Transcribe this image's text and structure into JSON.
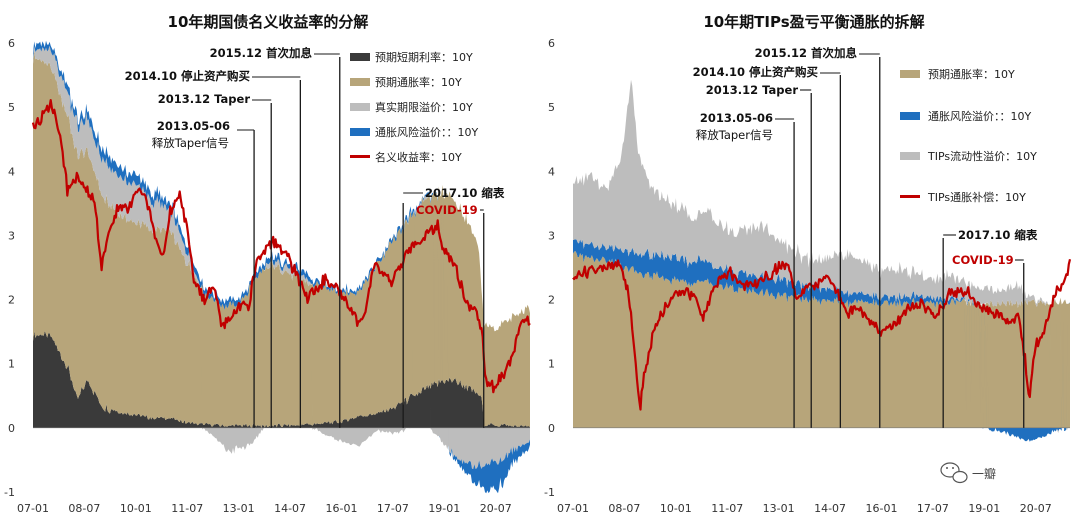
{
  "watermark": {
    "text": "一瓣"
  },
  "colors": {
    "short_rate": "#3a3a3a",
    "inflation_expectation": "#b7a57a",
    "term_premium": "#bdbdbd",
    "inflation_risk_premium": "#1f6fbf",
    "nominal_yield": "#c00000",
    "tips_liquidity": "#bdbdbd",
    "breakeven": "#c00000"
  },
  "chart_data": [
    {
      "type": "area",
      "title": "10年期国债名义收益率的分解",
      "xlabel": "",
      "ylabel": "",
      "ylim": [
        -1,
        6
      ],
      "yticks": [
        -1,
        0,
        1,
        2,
        3,
        4,
        5,
        6
      ],
      "x_range": [
        2007.0,
        2021.5
      ],
      "xticks": [
        {
          "label": "07-01",
          "x": 2007.0
        },
        {
          "label": "08-07",
          "x": 2008.5
        },
        {
          "label": "10-01",
          "x": 2010.0
        },
        {
          "label": "11-07",
          "x": 2011.5
        },
        {
          "label": "13-01",
          "x": 2013.0
        },
        {
          "label": "14-07",
          "x": 2014.5
        },
        {
          "label": "16-01",
          "x": 2016.0
        },
        {
          "label": "17-07",
          "x": 2017.5
        },
        {
          "label": "19-01",
          "x": 2019.0
        },
        {
          "label": "20-07",
          "x": 2020.5
        }
      ],
      "legend": [
        {
          "name": "预期短期利率：10Y",
          "kind": "area",
          "color_key": "short_rate"
        },
        {
          "name": "预期通胀率：10Y",
          "kind": "area",
          "color_key": "inflation_expectation"
        },
        {
          "name": "真实期限溢价：10Y",
          "kind": "area",
          "color_key": "term_premium"
        },
        {
          "name": "通胀风险溢价：：10Y",
          "kind": "area",
          "color_key": "inflation_risk_premium"
        },
        {
          "name": "名义收益率：10Y",
          "kind": "line",
          "color_key": "nominal_yield"
        }
      ],
      "series": [
        {
          "name": "预期短期利率：10Y",
          "color_key": "short_rate",
          "x": [
            2007.0,
            2007.5,
            2008.0,
            2008.3,
            2008.6,
            2009.0,
            2009.5,
            2010.0,
            2010.5,
            2011.0,
            2011.5,
            2012.0,
            2013.0,
            2014.0,
            2015.0,
            2016.0,
            2016.5,
            2017.0,
            2017.5,
            2018.0,
            2018.5,
            2019.0,
            2019.5,
            2019.8,
            2020.1,
            2020.15,
            2021.5
          ],
          "values": [
            1.45,
            1.45,
            0.95,
            0.45,
            0.75,
            0.35,
            0.25,
            0.2,
            0.15,
            0.15,
            0.08,
            0.05,
            0.03,
            0.03,
            0.05,
            0.1,
            0.18,
            0.22,
            0.3,
            0.45,
            0.6,
            0.75,
            0.7,
            0.6,
            0.45,
            0.05,
            0.02
          ]
        },
        {
          "name": "预期通胀率：10Y",
          "color_key": "inflation_expectation",
          "x": [
            2007.0,
            2007.5,
            2008.0,
            2008.5,
            2009.0,
            2009.5,
            2010.0,
            2010.5,
            2011.0,
            2011.5,
            2012.0,
            2012.5,
            2013.0,
            2013.5,
            2014.0,
            2014.5,
            2015.0,
            2015.5,
            2016.0,
            2016.5,
            2017.0,
            2017.5,
            2018.0,
            2018.5,
            2019.0,
            2019.5,
            2020.0,
            2020.1,
            2020.5,
            2021.0,
            2021.5
          ],
          "values": [
            4.35,
            4.2,
            3.95,
            3.65,
            3.3,
            3.1,
            3.0,
            2.95,
            2.9,
            2.5,
            2.05,
            1.9,
            1.85,
            2.3,
            2.5,
            2.35,
            2.2,
            2.15,
            2.0,
            1.95,
            2.3,
            2.6,
            2.8,
            2.95,
            2.95,
            2.7,
            2.3,
            1.6,
            1.5,
            1.7,
            1.85
          ]
        },
        {
          "name": "真实期限溢价：10Y",
          "color_key": "term_premium",
          "x": [
            2007.0,
            2008.0,
            2009.0,
            2010.0,
            2010.6,
            2011.0,
            2011.7,
            2012.3,
            2012.7,
            2013.3,
            2013.8,
            2014.5,
            2015.0,
            2015.5,
            2016.0,
            2016.5,
            2017.0,
            2017.5,
            2018.0,
            2018.5,
            2019.0,
            2019.5,
            2020.0,
            2020.3,
            2020.7,
            2021.0,
            2021.5
          ],
          "values": [
            0.1,
            0.4,
            0.55,
            0.6,
            0.4,
            0.35,
            0.1,
            -0.15,
            -0.35,
            -0.3,
            0.05,
            0.1,
            0.05,
            -0.1,
            -0.2,
            -0.3,
            -0.05,
            -0.1,
            0.0,
            0.05,
            -0.25,
            -0.55,
            -0.6,
            -0.55,
            -0.5,
            -0.35,
            -0.2
          ]
        },
        {
          "name": "通胀风险溢价：：10Y",
          "color_key": "inflation_risk_premium",
          "x": [
            2007.0,
            2008.0,
            2009.0,
            2010.0,
            2011.0,
            2012.0,
            2013.0,
            2014.0,
            2015.0,
            2016.0,
            2017.0,
            2018.0,
            2019.0,
            2019.5,
            2020.0,
            2020.3,
            2020.7,
            2021.0,
            2021.5
          ],
          "values": [
            0.08,
            0.1,
            0.15,
            0.15,
            0.12,
            0.08,
            0.08,
            0.08,
            0.07,
            0.05,
            0.05,
            0.05,
            0.0,
            -0.1,
            -0.3,
            -0.45,
            -0.4,
            -0.2,
            -0.1
          ]
        },
        {
          "name": "名义收益率：10Y",
          "color_key": "nominal_yield",
          "x": [
            2007.0,
            2007.3,
            2007.5,
            2007.8,
            2008.0,
            2008.3,
            2008.5,
            2008.8,
            2009.0,
            2009.2,
            2009.5,
            2009.8,
            2010.0,
            2010.3,
            2010.6,
            2010.8,
            2011.0,
            2011.3,
            2011.5,
            2011.7,
            2012.0,
            2012.3,
            2012.5,
            2012.8,
            2013.0,
            2013.3,
            2013.5,
            2013.8,
            2014.0,
            2014.5,
            2015.0,
            2015.5,
            2016.0,
            2016.3,
            2016.6,
            2016.9,
            2017.0,
            2017.5,
            2018.0,
            2018.5,
            2018.8,
            2019.0,
            2019.3,
            2019.6,
            2019.9,
            2020.1,
            2020.2,
            2020.4,
            2020.7,
            2021.0,
            2021.2,
            2021.4,
            2021.5
          ],
          "values": [
            4.7,
            4.85,
            5.1,
            4.6,
            3.7,
            3.9,
            3.8,
            3.5,
            2.5,
            3.0,
            3.5,
            3.4,
            3.7,
            3.6,
            2.9,
            2.6,
            3.4,
            3.6,
            3.1,
            2.3,
            2.0,
            2.2,
            1.6,
            1.7,
            1.9,
            1.9,
            2.6,
            2.8,
            2.9,
            2.6,
            2.0,
            2.3,
            2.1,
            1.8,
            1.6,
            2.4,
            2.5,
            2.3,
            2.8,
            3.0,
            3.2,
            2.7,
            2.6,
            2.0,
            1.8,
            1.6,
            0.7,
            0.65,
            0.8,
            1.1,
            1.6,
            1.7,
            1.65
          ]
        }
      ],
      "annotations": [
        {
          "text": "2015.12 首次加息",
          "x": 2015.95
        },
        {
          "text": "2014.10 停止资产购买",
          "x": 2014.8
        },
        {
          "text": "2013.12 Taper",
          "x": 2013.95
        },
        {
          "text": "2013.05-06",
          "x": 2013.45
        },
        {
          "text": "释放Taper信号",
          "x": null
        },
        {
          "text": "2017.10 缩表",
          "x": 2017.8
        },
        {
          "text": "COVID-19",
          "x": 2020.15
        }
      ]
    },
    {
      "type": "area",
      "title": "10年期TIPs盈亏平衡通胀的拆解",
      "xlabel": "",
      "ylabel": "",
      "ylim": [
        -1,
        6
      ],
      "yticks": [
        -1,
        0,
        1,
        2,
        3,
        4,
        5,
        6
      ],
      "x_range": [
        2007.0,
        2021.5
      ],
      "xticks": [
        {
          "label": "07-01",
          "x": 2007.0
        },
        {
          "label": "08-07",
          "x": 2008.5
        },
        {
          "label": "10-01",
          "x": 2010.0
        },
        {
          "label": "11-07",
          "x": 2011.5
        },
        {
          "label": "13-01",
          "x": 2013.0
        },
        {
          "label": "14-07",
          "x": 2014.5
        },
        {
          "label": "16-01",
          "x": 2016.0
        },
        {
          "label": "17-07",
          "x": 2017.5
        },
        {
          "label": "19-01",
          "x": 2019.0
        },
        {
          "label": "20-07",
          "x": 2020.5
        }
      ],
      "legend": [
        {
          "name": "预期通胀率：10Y",
          "kind": "area",
          "color_key": "inflation_expectation"
        },
        {
          "name": "通胀风险溢价：：10Y",
          "kind": "area",
          "color_key": "inflation_risk_premium"
        },
        {
          "name": "TIPs流动性溢价：10Y",
          "kind": "area",
          "color_key": "tips_liquidity"
        },
        {
          "name": "TIPs通胀补偿：10Y",
          "kind": "line",
          "color_key": "breakeven"
        }
      ],
      "series": [
        {
          "name": "预期通胀率：10Y",
          "color_key": "inflation_expectation",
          "x": [
            2007.0,
            2008.0,
            2009.0,
            2010.0,
            2011.0,
            2012.0,
            2013.0,
            2014.0,
            2015.0,
            2016.0,
            2017.0,
            2018.0,
            2019.0,
            2020.0,
            2020.5,
            2021.0,
            2021.5
          ],
          "values": [
            2.7,
            2.6,
            2.4,
            2.3,
            2.25,
            2.15,
            2.05,
            2.0,
            1.95,
            1.95,
            1.95,
            1.95,
            1.95,
            1.95,
            1.95,
            1.95,
            1.95
          ]
        },
        {
          "name": "通胀风险溢价：：10Y",
          "color_key": "inflation_risk_premium",
          "x": [
            2007.0,
            2008.0,
            2009.0,
            2010.0,
            2011.0,
            2012.0,
            2013.0,
            2014.0,
            2015.0,
            2016.0,
            2017.0,
            2018.0,
            2019.0,
            2019.5,
            2020.0,
            2020.3,
            2020.7,
            2021.0,
            2021.5
          ],
          "values": [
            0.2,
            0.2,
            0.3,
            0.35,
            0.3,
            0.25,
            0.25,
            0.2,
            0.15,
            0.1,
            0.1,
            0.05,
            0.0,
            -0.05,
            -0.15,
            -0.2,
            -0.15,
            -0.05,
            0.0
          ]
        },
        {
          "name": "TIPs流动性溢价：10Y",
          "color_key": "tips_liquidity",
          "x": [
            2007.0,
            2007.5,
            2008.0,
            2008.4,
            2008.7,
            2008.9,
            2009.2,
            2009.6,
            2010.0,
            2010.5,
            2011.0,
            2011.5,
            2012.0,
            2012.5,
            2013.0,
            2013.5,
            2014.0,
            2014.5,
            2015.0,
            2015.5,
            2016.0,
            2016.5,
            2017.0,
            2017.5,
            2018.0,
            2018.5,
            2019.0,
            2019.5,
            2020.0,
            2020.2,
            2020.5,
            2021.0,
            2021.5
          ],
          "values": [
            0.9,
            1.1,
            0.9,
            1.4,
            2.7,
            1.6,
            1.1,
            0.9,
            0.8,
            0.7,
            0.8,
            0.6,
            0.7,
            0.8,
            0.6,
            0.5,
            0.4,
            0.5,
            0.6,
            0.5,
            0.4,
            0.45,
            0.35,
            0.3,
            0.35,
            0.25,
            0.25,
            0.2,
            0.3,
            0.1,
            0.05,
            0.0,
            0.0
          ]
        },
        {
          "name": "TIPs通胀补偿：10Y",
          "color_key": "breakeven",
          "x": [
            2007.0,
            2007.5,
            2008.0,
            2008.3,
            2008.6,
            2008.8,
            2008.95,
            2009.1,
            2009.4,
            2009.7,
            2010.0,
            2010.5,
            2010.8,
            2011.2,
            2011.6,
            2012.0,
            2012.5,
            2013.0,
            2013.3,
            2013.5,
            2013.8,
            2014.5,
            2014.8,
            2015.0,
            2015.3,
            2015.7,
            2016.0,
            2016.4,
            2016.9,
            2017.2,
            2017.6,
            2018.0,
            2018.5,
            2018.9,
            2019.3,
            2019.7,
            2020.0,
            2020.2,
            2020.3,
            2020.5,
            2020.8,
            2021.1,
            2021.4,
            2021.5
          ],
          "values": [
            2.35,
            2.45,
            2.5,
            2.6,
            2.2,
            1.2,
            0.3,
            0.9,
            1.6,
            1.9,
            2.1,
            2.1,
            1.7,
            2.3,
            2.4,
            2.2,
            2.3,
            2.5,
            2.55,
            2.0,
            2.2,
            2.3,
            2.0,
            1.8,
            1.9,
            1.6,
            1.5,
            1.6,
            1.9,
            1.95,
            1.75,
            2.1,
            2.1,
            1.9,
            1.8,
            1.65,
            1.75,
            1.0,
            0.45,
            1.3,
            1.6,
            2.1,
            2.35,
            2.55
          ]
        }
      ],
      "annotations": [
        {
          "text": "2015.12 首次加息",
          "x": 2015.95
        },
        {
          "text": "2014.10 停止资产购买",
          "x": 2014.8
        },
        {
          "text": "2013.12 Taper",
          "x": 2013.95
        },
        {
          "text": "2013.05-06",
          "x": 2013.45
        },
        {
          "text": "释放Taper信号",
          "x": null
        },
        {
          "text": "2017.10 缩表",
          "x": 2017.8
        },
        {
          "text": "COVID-19",
          "x": 2020.15
        }
      ]
    }
  ]
}
